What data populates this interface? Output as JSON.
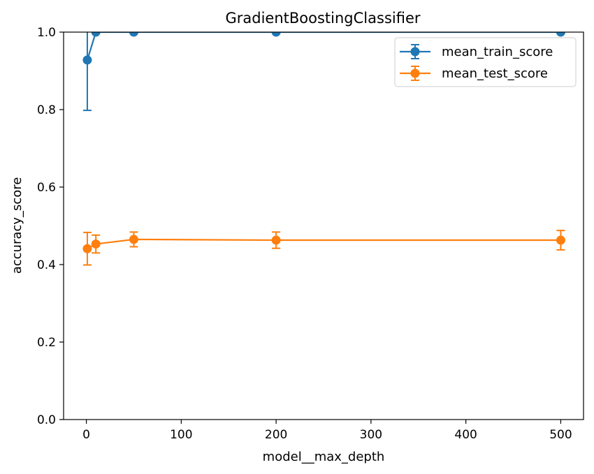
{
  "chart_data": {
    "type": "line",
    "title": "GradientBoostingClassifier",
    "xlabel": "model__max_depth",
    "ylabel": "accuracy_score",
    "xlim": [
      -24,
      524
    ],
    "ylim": [
      0.0,
      1.0
    ],
    "xticks": [
      0,
      100,
      200,
      300,
      400,
      500
    ],
    "yticks": [
      0.0,
      0.2,
      0.4,
      0.6,
      0.8,
      1.0
    ],
    "xtick_labels": [
      "0",
      "100",
      "200",
      "300",
      "400",
      "500"
    ],
    "ytick_labels": [
      "0.0",
      "0.2",
      "0.4",
      "0.6",
      "0.8",
      "1.0"
    ],
    "grid": false,
    "legend_position": "top-right",
    "series": [
      {
        "name": "mean_train_score",
        "color": "#1f77b4",
        "x": [
          1,
          10,
          50,
          200,
          500
        ],
        "y": [
          0.928,
          1.0,
          1.0,
          1.0,
          1.0
        ],
        "yerr": [
          0.13,
          0.0,
          0.0,
          0.0,
          0.0
        ]
      },
      {
        "name": "mean_test_score",
        "color": "#ff7f0e",
        "x": [
          1,
          10,
          50,
          200,
          500
        ],
        "y": [
          0.441,
          0.453,
          0.465,
          0.463,
          0.463
        ],
        "yerr": [
          0.042,
          0.023,
          0.019,
          0.021,
          0.025
        ]
      }
    ]
  }
}
